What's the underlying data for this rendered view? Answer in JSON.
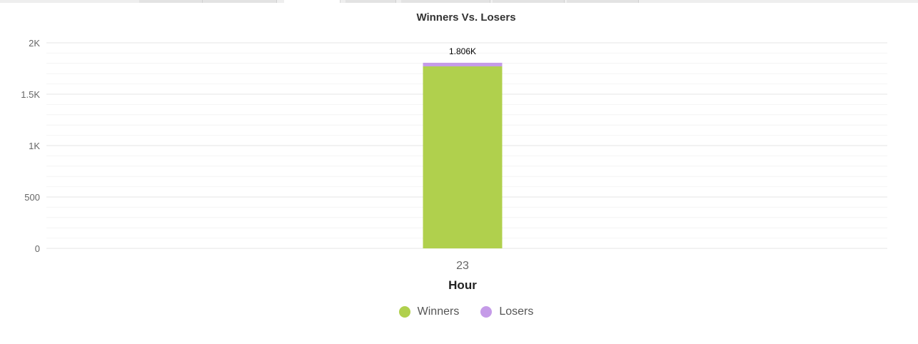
{
  "chart_data": {
    "type": "bar",
    "stacked": true,
    "title": "Winners Vs. Losers",
    "xlabel": "Hour",
    "ylabel": "",
    "categories": [
      "23"
    ],
    "series": [
      {
        "name": "Winners",
        "values": [
          1771
        ],
        "color": "#b0d04d"
      },
      {
        "name": "Losers",
        "values": [
          35
        ],
        "color": "#c59be8"
      }
    ],
    "totals": [
      "1.806K"
    ],
    "ylim": [
      0,
      2000
    ],
    "yticks": [
      {
        "value": 0,
        "label": "0"
      },
      {
        "value": 500,
        "label": "500"
      },
      {
        "value": 1000,
        "label": "1K"
      },
      {
        "value": 1500,
        "label": "1.5K"
      },
      {
        "value": 2000,
        "label": "2K"
      }
    ],
    "grid": true,
    "legend_position": "bottom-center"
  }
}
